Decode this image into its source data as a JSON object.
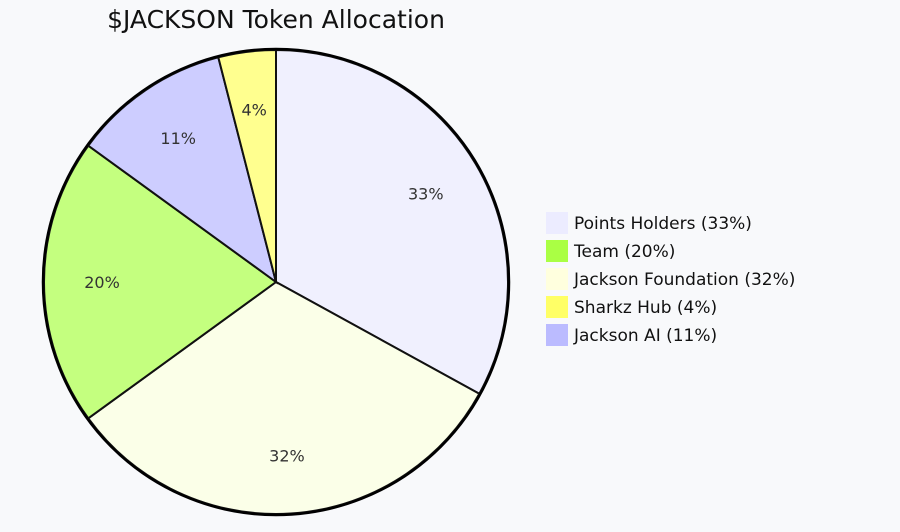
{
  "chart_data": {
    "type": "pie",
    "title": "$JACKSON Token Allocation",
    "slices": [
      {
        "label": "Points Holders",
        "value": 33,
        "display": "33%",
        "legend": "Points Holders (33%)",
        "color": "#ECECFF",
        "slice_color": "#F0F0FE"
      },
      {
        "label": "Team",
        "value": 20,
        "display": "20%",
        "legend": "Team (20%)",
        "color": "#AAFF44",
        "slice_color": "#C4FF7F"
      },
      {
        "label": "Jackson Foundation",
        "value": 32,
        "display": "32%",
        "legend": "Jackson Foundation (32%)",
        "color": "#FFFFDE",
        "slice_color": "#FBFFE8"
      },
      {
        "label": "Sharkz Hub",
        "value": 4,
        "display": "4%",
        "legend": "Sharkz Hub (4%)",
        "color": "#FFFF66",
        "slice_color": "#FFFF8F"
      },
      {
        "label": "Jackson AI",
        "value": 11,
        "display": "11%",
        "legend": "Jackson AI (11%)",
        "color": "#BBBBFF",
        "slice_color": "#CDCDFF"
      }
    ],
    "slice_order": "descending by value, clockwise from top",
    "legend_placement": "right"
  }
}
